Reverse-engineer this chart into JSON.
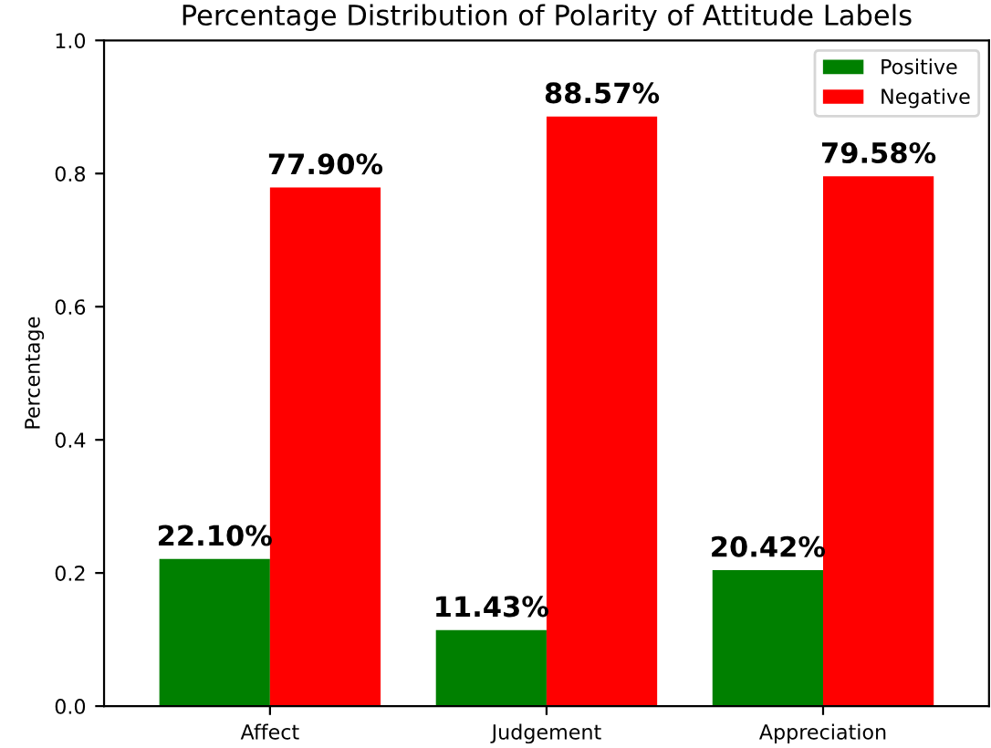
{
  "chart_data": {
    "type": "bar",
    "title": "Percentage Distribution of Polarity of Attitude Labels",
    "ylabel": "Percentage",
    "categories": [
      "Affect",
      "Judgement",
      "Appreciation"
    ],
    "series": [
      {
        "name": "Positive",
        "color": "#008000",
        "values": [
          0.221,
          0.1143,
          0.2042
        ],
        "value_labels": [
          "22.10%",
          "11.43%",
          "20.42%"
        ]
      },
      {
        "name": "Negative",
        "color": "#ff0000",
        "values": [
          0.779,
          0.8857,
          0.7958
        ],
        "value_labels": [
          "77.90%",
          "88.57%",
          "79.58%"
        ]
      }
    ],
    "ylim": [
      0,
      1.0
    ],
    "yticks": [
      {
        "value": 0,
        "label": "0.0"
      },
      {
        "value": 0.2,
        "label": "0.2"
      },
      {
        "value": 0.4,
        "label": "0.4"
      },
      {
        "value": 0.6,
        "label": "0.6"
      },
      {
        "value": 0.8,
        "label": "0.8"
      },
      {
        "value": 1.0,
        "label": "1.0"
      }
    ],
    "grid": false,
    "legend": "top right"
  }
}
